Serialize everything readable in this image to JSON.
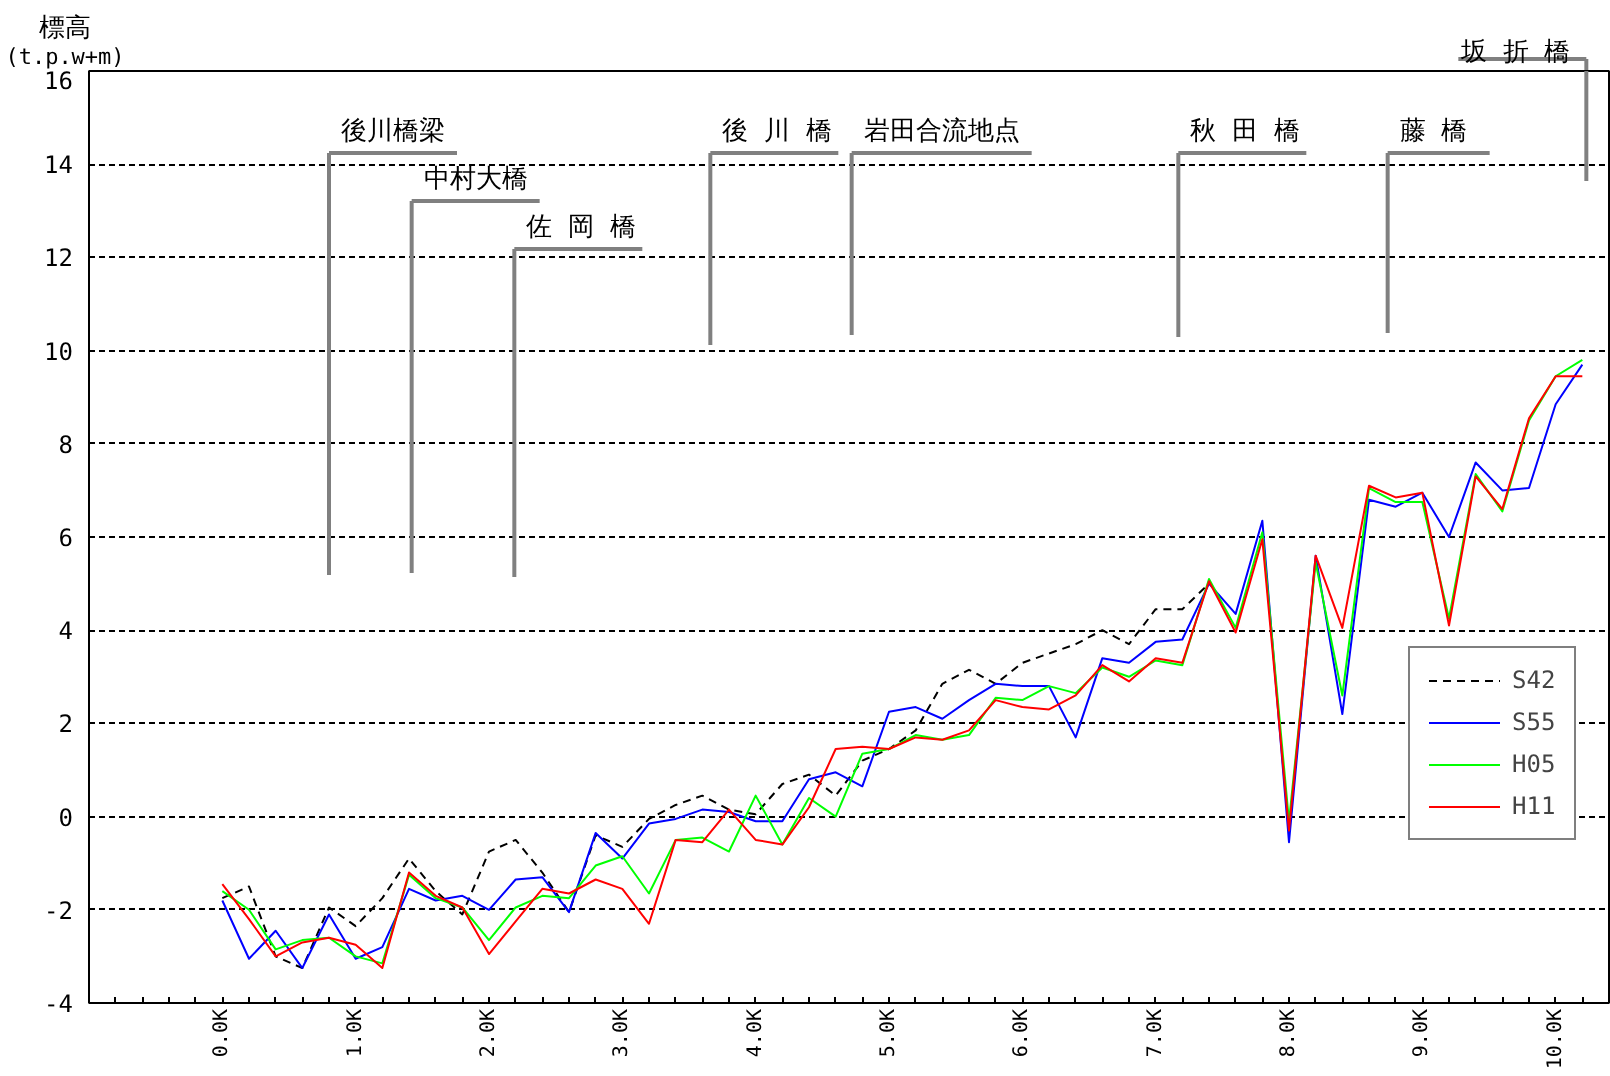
{
  "chart_data": {
    "type": "line",
    "ylabel": "標高\n(t.p.w+m)",
    "x": [
      0.0,
      0.2,
      0.4,
      0.6,
      0.8,
      1.0,
      1.2,
      1.4,
      1.6,
      1.8,
      2.0,
      2.2,
      2.4,
      2.6,
      2.8,
      3.0,
      3.2,
      3.4,
      3.6,
      3.8,
      4.0,
      4.2,
      4.4,
      4.6,
      4.8,
      5.0,
      5.2,
      5.4,
      5.6,
      5.8,
      6.0,
      6.2,
      6.4,
      6.6,
      6.8,
      7.0,
      7.2,
      7.4,
      7.6,
      7.8,
      8.0,
      8.2,
      8.4,
      8.6,
      8.8,
      9.0,
      9.2,
      9.4,
      9.6,
      9.8,
      10.0,
      10.2
    ],
    "xlim": [
      -1.0,
      10.4
    ],
    "xticks": [
      {
        "value": -0.8,
        "label": null
      },
      {
        "value": -0.6,
        "label": null
      },
      {
        "value": -0.4,
        "label": null
      },
      {
        "value": -0.2,
        "label": null
      },
      {
        "value": 0.0,
        "label": "0.0K"
      },
      {
        "value": 0.2,
        "label": null
      },
      {
        "value": 0.4,
        "label": null
      },
      {
        "value": 0.6,
        "label": null
      },
      {
        "value": 0.8,
        "label": null
      },
      {
        "value": 1.0,
        "label": "1.0K"
      },
      {
        "value": 1.2,
        "label": null
      },
      {
        "value": 1.4,
        "label": null
      },
      {
        "value": 1.6,
        "label": null
      },
      {
        "value": 1.8,
        "label": null
      },
      {
        "value": 2.0,
        "label": "2.0K"
      },
      {
        "value": 2.2,
        "label": null
      },
      {
        "value": 2.4,
        "label": null
      },
      {
        "value": 2.6,
        "label": null
      },
      {
        "value": 2.8,
        "label": null
      },
      {
        "value": 3.0,
        "label": "3.0K"
      },
      {
        "value": 3.2,
        "label": null
      },
      {
        "value": 3.4,
        "label": null
      },
      {
        "value": 3.6,
        "label": null
      },
      {
        "value": 3.8,
        "label": null
      },
      {
        "value": 4.0,
        "label": "4.0K"
      },
      {
        "value": 4.2,
        "label": null
      },
      {
        "value": 4.4,
        "label": null
      },
      {
        "value": 4.6,
        "label": null
      },
      {
        "value": 4.8,
        "label": null
      },
      {
        "value": 5.0,
        "label": "5.0K"
      },
      {
        "value": 5.2,
        "label": null
      },
      {
        "value": 5.4,
        "label": null
      },
      {
        "value": 5.6,
        "label": null
      },
      {
        "value": 5.8,
        "label": null
      },
      {
        "value": 6.0,
        "label": "6.0K"
      },
      {
        "value": 6.2,
        "label": null
      },
      {
        "value": 6.4,
        "label": null
      },
      {
        "value": 6.6,
        "label": null
      },
      {
        "value": 6.8,
        "label": null
      },
      {
        "value": 7.0,
        "label": "7.0K"
      },
      {
        "value": 7.2,
        "label": null
      },
      {
        "value": 7.4,
        "label": null
      },
      {
        "value": 7.6,
        "label": null
      },
      {
        "value": 7.8,
        "label": null
      },
      {
        "value": 8.0,
        "label": "8.0K"
      },
      {
        "value": 8.2,
        "label": null
      },
      {
        "value": 8.4,
        "label": null
      },
      {
        "value": 8.6,
        "label": null
      },
      {
        "value": 8.8,
        "label": null
      },
      {
        "value": 9.0,
        "label": "9.0K"
      },
      {
        "value": 9.2,
        "label": null
      },
      {
        "value": 9.4,
        "label": null
      },
      {
        "value": 9.6,
        "label": null
      },
      {
        "value": 9.8,
        "label": null
      },
      {
        "value": 10.0,
        "label": "10.0K"
      },
      {
        "value": 10.2,
        "label": null
      }
    ],
    "ylim": [
      -4,
      16
    ],
    "yticks": [
      -4,
      -2,
      0,
      2,
      4,
      6,
      8,
      10,
      12,
      14,
      16
    ],
    "grid": "y",
    "legend": "right",
    "line_style": "solid",
    "series": [
      {
        "name": "S42",
        "color": "#000000",
        "line_style": "dashed",
        "values": [
          -1.75,
          -1.5,
          -3.0,
          -3.25,
          -1.95,
          -2.35,
          -1.75,
          -0.9,
          -1.6,
          -2.1,
          -0.75,
          -0.5,
          -1.2,
          -2.05,
          -0.4,
          -0.65,
          -0.05,
          0.25,
          0.45,
          0.15,
          0.05,
          0.7,
          0.9,
          0.45,
          1.2,
          1.45,
          1.85,
          2.85,
          3.15,
          2.85,
          3.3,
          3.5,
          3.7,
          4.0,
          3.7,
          4.45,
          4.45,
          5.0,
          null,
          null,
          null,
          null,
          null,
          null,
          null,
          null,
          null,
          null,
          null,
          null,
          null,
          null
        ]
      },
      {
        "name": "S55",
        "color": "#0000ff",
        "values": [
          -1.8,
          -3.05,
          -2.45,
          -3.25,
          -2.1,
          -3.05,
          -2.8,
          -1.55,
          -1.8,
          -1.7,
          -2.0,
          -1.35,
          -1.3,
          -2.05,
          -0.35,
          -0.9,
          -0.15,
          -0.05,
          0.15,
          0.1,
          -0.1,
          -0.1,
          0.8,
          0.95,
          0.65,
          2.25,
          2.35,
          2.1,
          2.5,
          2.85,
          2.8,
          2.8,
          1.7,
          3.4,
          3.3,
          3.75,
          3.8,
          5.0,
          4.35,
          6.35,
          -0.55,
          5.6,
          2.2,
          6.8,
          6.65,
          6.95,
          6.0,
          7.6,
          7.0,
          7.05,
          8.85,
          9.7
        ]
      },
      {
        "name": "H05",
        "color": "#00ff00",
        "values": [
          -1.6,
          -2.0,
          -2.85,
          -2.65,
          -2.6,
          -3.0,
          -3.15,
          -1.25,
          -1.75,
          -1.95,
          -2.65,
          -1.95,
          -1.7,
          -1.75,
          -1.05,
          -0.85,
          -1.65,
          -0.5,
          -0.45,
          -0.75,
          0.45,
          -0.6,
          0.4,
          0.0,
          1.35,
          1.45,
          1.75,
          1.65,
          1.75,
          2.55,
          2.5,
          2.8,
          2.65,
          3.2,
          3.0,
          3.35,
          3.25,
          5.1,
          4.05,
          6.1,
          -0.1,
          5.45,
          2.6,
          7.05,
          6.75,
          6.75,
          4.25,
          7.35,
          6.55,
          8.5,
          9.45,
          9.8
        ]
      },
      {
        "name": "H11",
        "color": "#ff0000",
        "values": [
          -1.45,
          -2.2,
          -3.0,
          -2.7,
          -2.6,
          -2.75,
          -3.25,
          -1.2,
          -1.7,
          -1.95,
          -2.95,
          -2.25,
          -1.55,
          -1.65,
          -1.35,
          -1.55,
          -2.3,
          -0.5,
          -0.55,
          0.15,
          -0.5,
          -0.6,
          0.2,
          1.45,
          1.5,
          1.45,
          1.7,
          1.65,
          1.85,
          2.5,
          2.35,
          2.3,
          2.6,
          3.25,
          2.9,
          3.4,
          3.3,
          5.05,
          3.95,
          5.95,
          -0.3,
          5.6,
          4.05,
          7.1,
          6.85,
          6.95,
          4.1,
          7.3,
          6.6,
          8.55,
          9.45,
          9.45
        ]
      }
    ],
    "ref_lines": [
      {
        "axis": "x",
        "value": 0.8,
        "label": "後川橋梁",
        "color": "#808080"
      },
      {
        "axis": "x",
        "value": 1.42,
        "label": "中村大橋",
        "color": "#808080"
      },
      {
        "axis": "x",
        "value": 2.19,
        "label": "佐 岡 橋",
        "color": "#808080"
      },
      {
        "axis": "x",
        "value": 3.66,
        "label": "後 川 橋",
        "color": "#808080"
      },
      {
        "axis": "x",
        "value": 4.72,
        "label": "岩田合流地点",
        "color": "#808080"
      },
      {
        "axis": "x",
        "value": 7.17,
        "label": "秋 田 橋",
        "color": "#808080"
      },
      {
        "axis": "x",
        "value": 8.74,
        "label": "藤  橋",
        "color": "#808080"
      },
      {
        "axis": "x",
        "value": 10.23,
        "label": "坂 折 橋",
        "color": "#808080"
      }
    ]
  }
}
